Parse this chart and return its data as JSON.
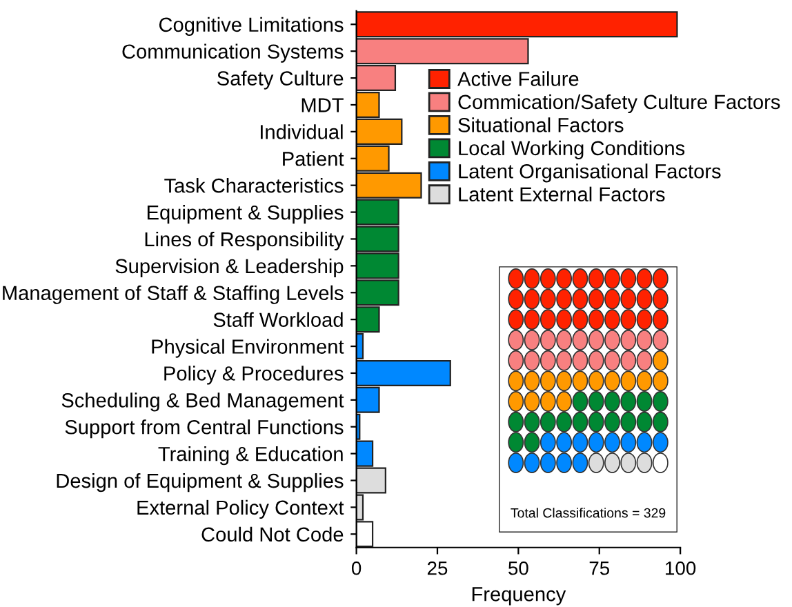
{
  "chart_data": {
    "type": "bar",
    "orientation": "horizontal",
    "xlabel": "Frequency",
    "categories": [
      "Cognitive Limitations",
      "Communication Systems",
      "Safety Culture",
      "MDT",
      "Individual",
      "Patient",
      "Task Characteristics",
      "Equipment & Supplies",
      "Lines of Responsibility",
      "Supervision & Leadership",
      "Management of Staff & Staffing Levels",
      "Staff Workload",
      "Physical Environment",
      "Policy & Procedures",
      "Scheduling & Bed Management",
      "Support from Central Functions",
      "Training & Education",
      "Design of Equipment & Supplies",
      "External Policy Context",
      "Could Not Code"
    ],
    "series": [
      {
        "name": "Active Failure",
        "color": "#ff2200",
        "values": [
          99,
          null,
          null,
          null,
          null,
          null,
          null,
          null,
          null,
          null,
          null,
          null,
          null,
          null,
          null,
          null,
          null,
          null,
          null,
          null
        ]
      },
      {
        "name": "Commication/Safety Culture Factors",
        "color": "#f88080",
        "values": [
          null,
          53,
          12,
          null,
          null,
          null,
          null,
          null,
          null,
          null,
          null,
          null,
          null,
          null,
          null,
          null,
          null,
          null,
          null,
          null
        ]
      },
      {
        "name": "Situational Factors",
        "color": "#ff9900",
        "values": [
          null,
          null,
          null,
          7,
          14,
          10,
          20,
          null,
          null,
          null,
          null,
          null,
          null,
          null,
          null,
          null,
          null,
          null,
          null,
          null
        ]
      },
      {
        "name": "Local Working Conditions",
        "color": "#008833",
        "values": [
          null,
          null,
          null,
          null,
          null,
          null,
          null,
          13,
          13,
          13,
          13,
          7,
          null,
          null,
          null,
          null,
          null,
          null,
          null,
          null
        ]
      },
      {
        "name": "Latent Organisational Factors",
        "color": "#0088ff",
        "values": [
          null,
          null,
          null,
          null,
          null,
          null,
          null,
          null,
          null,
          null,
          null,
          null,
          2,
          29,
          7,
          1,
          5,
          null,
          null,
          null
        ]
      },
      {
        "name": "Latent External Factors",
        "color": "#dddddd",
        "values": [
          null,
          null,
          null,
          null,
          null,
          null,
          null,
          null,
          null,
          null,
          null,
          null,
          null,
          null,
          null,
          null,
          null,
          9,
          2,
          null
        ]
      },
      {
        "color": "#ffffff",
        "values": [
          null,
          null,
          null,
          null,
          null,
          null,
          null,
          null,
          null,
          null,
          null,
          null,
          null,
          null,
          null,
          null,
          null,
          null,
          null,
          5
        ]
      }
    ],
    "xlim": [
      0,
      100
    ],
    "xticks": [
      0,
      25,
      50,
      75,
      100
    ],
    "grid": false,
    "legend": "top right",
    "annotations": [
      "Total Classifications = 329"
    ]
  }
}
